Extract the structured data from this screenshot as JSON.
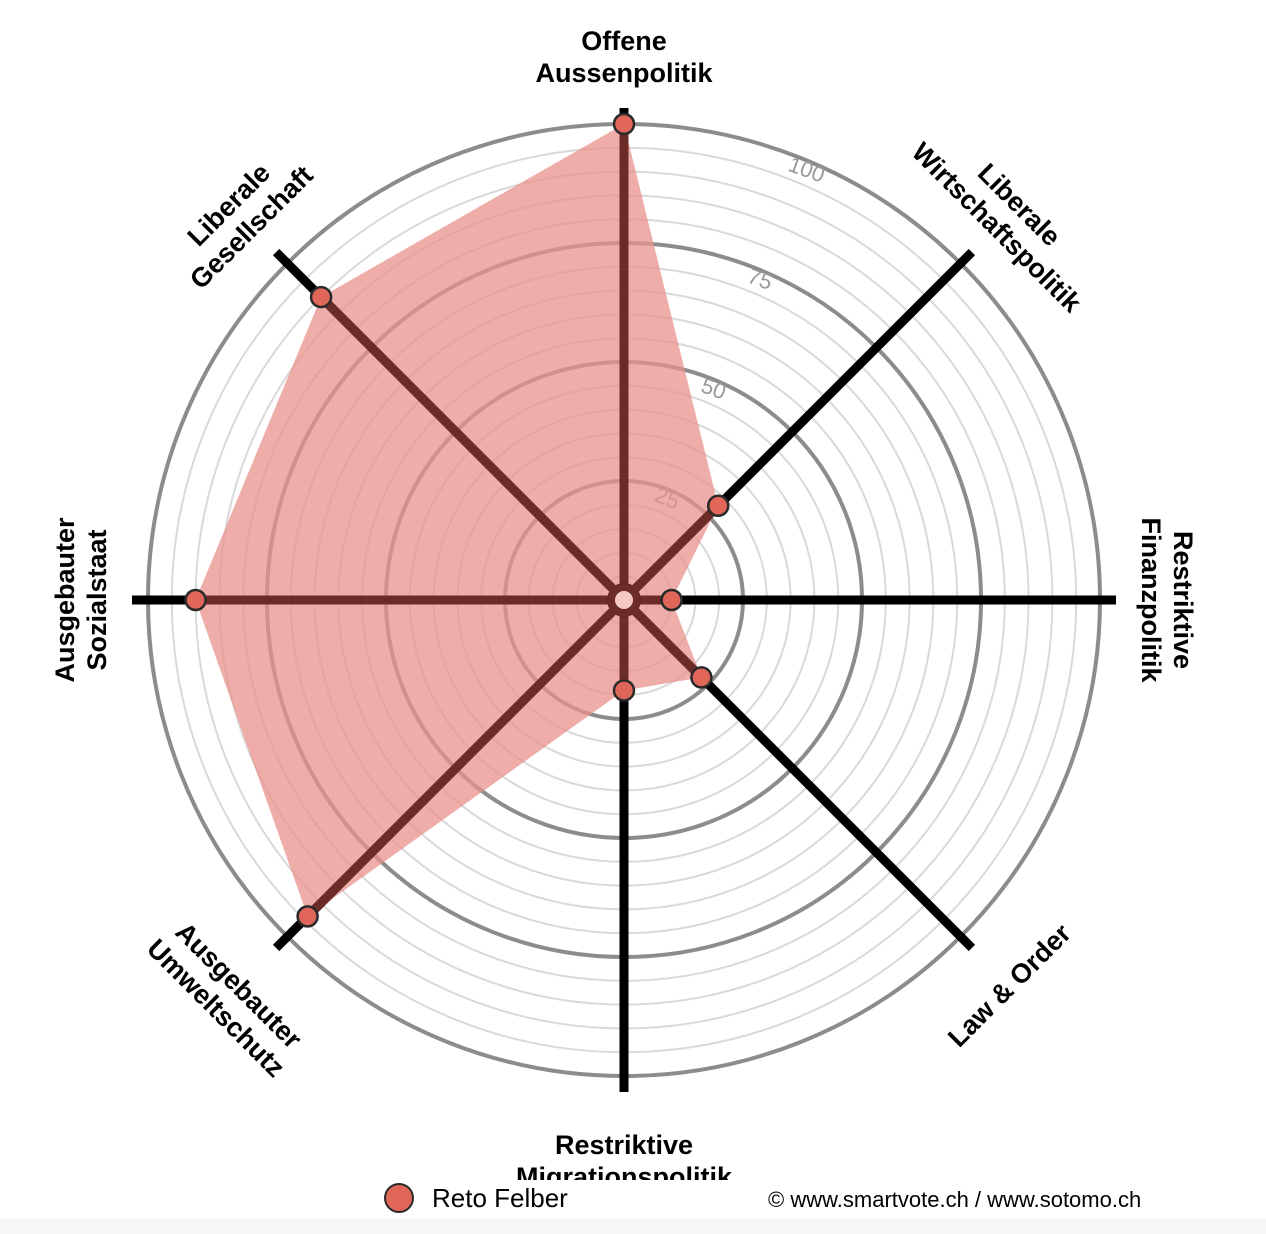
{
  "chart_data": {
    "type": "radar",
    "axes": [
      {
        "label": [
          "Offene",
          "Aussenpolitik"
        ]
      },
      {
        "label": [
          "Liberale",
          "Wirtschaftspolitik"
        ]
      },
      {
        "label": [
          "Restriktive",
          "Finanzpolitik"
        ]
      },
      {
        "label": [
          "Law & Order"
        ]
      },
      {
        "label": [
          "Restriktive",
          "Migrationspolitik"
        ]
      },
      {
        "label": [
          "Ausgebauter",
          "Umweltschutz"
        ]
      },
      {
        "label": [
          "Ausgebauter",
          "Sozialstaat"
        ]
      },
      {
        "label": [
          "Liberale",
          "Gesellschaft"
        ]
      }
    ],
    "series": [
      {
        "name": "Reto Felber",
        "color": "#e0665a",
        "values": [
          100,
          28,
          10,
          23,
          19,
          94,
          90,
          90
        ]
      }
    ],
    "range": [
      0,
      100
    ],
    "ticks": [
      25,
      50,
      75,
      100
    ],
    "minor_step": 5
  },
  "legend": {
    "label": "Reto Felber"
  },
  "footer": {
    "copyright": "© www.smartvote.ch / www.sotomo.ch"
  },
  "colors": {
    "fill": "#e8928b",
    "marker": "#e0665a",
    "axis_active": "#6b2b26",
    "axis_rest": "#000000",
    "ring_major": "#8c8c8c",
    "ring_minor": "#d9d9d9"
  }
}
